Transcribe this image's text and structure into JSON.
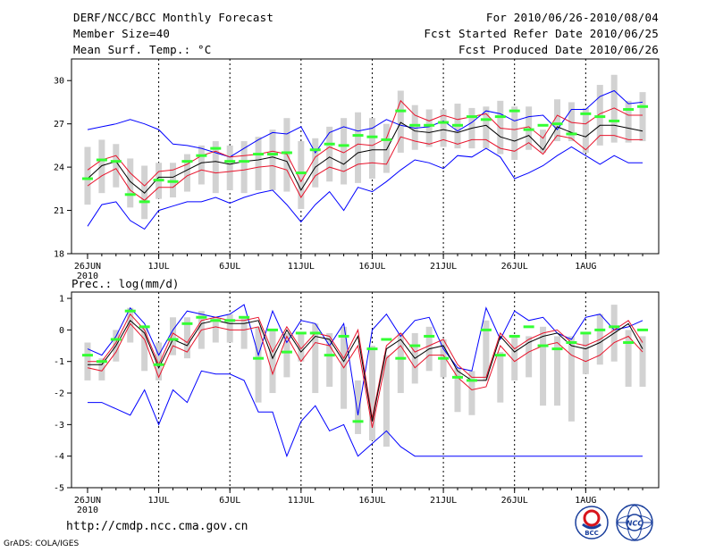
{
  "header": {
    "title": "DERF/NCC/BCC Monthly Forecast",
    "member_size": "Member Size=40",
    "variable": "Mean Surf. Temp.: °C",
    "period": "For 2010/06/26-2010/08/04",
    "started": "Fcst Started Refer Date 2010/06/25",
    "produced": "Fcst Produced Date 2010/06/26"
  },
  "footer": {
    "url": "http://cmdp.ncc.cma.gov.cn",
    "grads": "GrADS: COLA/IGES",
    "logo_bcc_text": "BCC",
    "logo_ncc_text": "NCC"
  },
  "colors": {
    "max_min": "#0000ff",
    "std_band": "#e8142c",
    "mean": "#000000",
    "observed": "#33ff33",
    "range_box": "#d2d2d2"
  },
  "chart_data": [
    {
      "type": "line",
      "title": "Mean Surf. Temp.: °C",
      "x_start": "26JUN 2010",
      "days": 40,
      "ylim": [
        18,
        31.5
      ],
      "yticks": [
        18,
        21,
        24,
        27,
        30
      ],
      "xtick_labels": [
        {
          "day": 0,
          "label": "26JUN"
        },
        {
          "day": 5,
          "label": "1JUL"
        },
        {
          "day": 10,
          "label": "6JUL"
        },
        {
          "day": 15,
          "label": "11JUL"
        },
        {
          "day": 20,
          "label": "16JUL"
        },
        {
          "day": 25,
          "label": "21JUL"
        },
        {
          "day": 30,
          "label": "26JUL"
        },
        {
          "day": 35,
          "label": "1AUG"
        }
      ],
      "year_label": "2010",
      "series": [
        {
          "name": "max",
          "values": [
            26.6,
            26.8,
            27.0,
            27.3,
            27.0,
            26.6,
            25.6,
            25.5,
            25.3,
            25.0,
            24.7,
            25.3,
            25.9,
            26.4,
            26.3,
            26.8,
            25.0,
            26.4,
            26.8,
            26.5,
            26.7,
            27.3,
            26.9,
            26.7,
            26.8,
            27.2,
            26.5,
            27.1,
            27.9,
            27.7,
            27.2,
            27.5,
            27.6,
            26.6,
            28.0,
            28.0,
            28.9,
            29.3,
            28.4,
            28.5
          ]
        },
        {
          "name": "upper",
          "values": [
            23.8,
            24.5,
            24.8,
            23.6,
            22.7,
            23.7,
            23.8,
            24.2,
            24.8,
            25.1,
            24.7,
            24.8,
            24.9,
            25.1,
            24.9,
            23.0,
            24.7,
            25.4,
            25.0,
            25.6,
            25.5,
            26.0,
            28.6,
            27.6,
            27.2,
            27.6,
            27.3,
            27.5,
            27.7,
            26.7,
            26.6,
            26.8,
            26.0,
            27.6,
            27.1,
            27.0,
            27.7,
            28.1,
            27.6,
            27.6
          ]
        },
        {
          "name": "mean",
          "values": [
            23.2,
            24.1,
            24.4,
            23.0,
            22.2,
            23.3,
            23.3,
            23.8,
            24.3,
            24.4,
            24.2,
            24.4,
            24.5,
            24.7,
            24.4,
            22.4,
            24.0,
            24.7,
            24.2,
            25.0,
            25.2,
            25.2,
            27.1,
            26.5,
            26.4,
            26.6,
            26.4,
            26.7,
            26.9,
            26.1,
            25.8,
            26.2,
            25.2,
            26.8,
            26.4,
            26.1,
            26.9,
            26.9,
            26.7,
            26.5
          ]
        },
        {
          "name": "lower",
          "values": [
            22.7,
            23.4,
            23.9,
            22.4,
            21.7,
            22.6,
            22.6,
            23.4,
            23.8,
            23.6,
            23.7,
            23.8,
            24.0,
            24.1,
            23.8,
            21.9,
            23.4,
            24.0,
            23.7,
            24.2,
            24.3,
            24.2,
            26.1,
            25.8,
            25.6,
            25.9,
            25.6,
            25.9,
            25.9,
            25.3,
            25.1,
            25.7,
            24.9,
            26.2,
            26.0,
            25.2,
            26.2,
            26.2,
            25.9,
            25.9
          ]
        },
        {
          "name": "min",
          "values": [
            19.9,
            21.4,
            21.6,
            20.3,
            19.7,
            21.0,
            21.3,
            21.6,
            21.6,
            21.9,
            21.5,
            21.9,
            22.2,
            22.4,
            21.4,
            20.2,
            21.4,
            22.3,
            21.0,
            22.6,
            22.3,
            23.0,
            23.8,
            24.5,
            24.3,
            23.9,
            24.8,
            24.7,
            25.3,
            24.7,
            23.2,
            23.6,
            24.1,
            24.8,
            25.4,
            24.8,
            24.2,
            24.8,
            24.3,
            24.3
          ]
        },
        {
          "name": "observed",
          "values": [
            23.2,
            24.5,
            24.4,
            22.1,
            21.6,
            23.1,
            23.0,
            24.4,
            24.8,
            25.3,
            24.4,
            24.4,
            24.9,
            24.9,
            25.0,
            23.6,
            25.2,
            25.6,
            25.5,
            26.2,
            26.1,
            25.9,
            27.9,
            26.9,
            26.9,
            27.1,
            26.9,
            27.5,
            27.3,
            27.5,
            27.9,
            26.6,
            26.9,
            27.0,
            26.3,
            27.7,
            27.5,
            27.2,
            28.0,
            28.2
          ]
        }
      ],
      "range_boxes": [
        [
          21.4,
          25.4
        ],
        [
          22.2,
          25.9
        ],
        [
          22.6,
          25.6
        ],
        [
          21.2,
          24.6
        ],
        [
          20.4,
          24.1
        ],
        [
          21.8,
          24.3
        ],
        [
          21.9,
          24.3
        ],
        [
          22.3,
          24.9
        ],
        [
          22.8,
          25.5
        ],
        [
          22.2,
          25.8
        ],
        [
          22.4,
          25.5
        ],
        [
          22.2,
          25.8
        ],
        [
          22.4,
          26.1
        ],
        [
          22.4,
          26.6
        ],
        [
          22.3,
          27.4
        ],
        [
          21.1,
          25.8
        ],
        [
          22.6,
          26.0
        ],
        [
          23.0,
          26.8
        ],
        [
          22.8,
          27.4
        ],
        [
          22.9,
          27.8
        ],
        [
          23.2,
          27.4
        ],
        [
          23.6,
          27.0
        ],
        [
          25.0,
          29.3
        ],
        [
          25.2,
          28.3
        ],
        [
          25.4,
          28.0
        ],
        [
          25.4,
          28.0
        ],
        [
          25.3,
          28.4
        ],
        [
          25.3,
          28.1
        ],
        [
          25.3,
          28.2
        ],
        [
          24.9,
          28.6
        ],
        [
          24.5,
          28.2
        ],
        [
          25.2,
          28.2
        ],
        [
          25.0,
          26.6
        ],
        [
          25.8,
          28.7
        ],
        [
          25.8,
          28.5
        ],
        [
          25.0,
          28.1
        ],
        [
          25.5,
          29.7
        ],
        [
          25.7,
          30.4
        ],
        [
          25.7,
          28.6
        ],
        [
          25.8,
          29.2
        ]
      ]
    },
    {
      "type": "line",
      "title": "Prec.: log(mm/d)",
      "x_start": "26JUN 2010",
      "days": 40,
      "ylim": [
        -5,
        1.2
      ],
      "yticks": [
        -5,
        -4,
        -3,
        -2,
        -1,
        0,
        1
      ],
      "xtick_labels": [
        {
          "day": 0,
          "label": "26JUN"
        },
        {
          "day": 5,
          "label": "1JUL"
        },
        {
          "day": 10,
          "label": "6JUL"
        },
        {
          "day": 15,
          "label": "11JUL"
        },
        {
          "day": 20,
          "label": "16JUL"
        },
        {
          "day": 25,
          "label": "21JUL"
        },
        {
          "day": 30,
          "label": "26JUL"
        },
        {
          "day": 35,
          "label": "1AUG"
        }
      ],
      "year_label": "2010",
      "series": [
        {
          "name": "max",
          "values": [
            -0.6,
            -0.8,
            -0.2,
            0.7,
            0.2,
            -0.8,
            0.0,
            0.6,
            0.5,
            0.4,
            0.5,
            0.8,
            -0.8,
            0.6,
            -0.4,
            0.3,
            0.2,
            -0.5,
            0.2,
            -2.7,
            0.0,
            0.5,
            -0.2,
            0.3,
            0.4,
            -0.6,
            -1.2,
            -1.3,
            0.7,
            -0.3,
            0.6,
            0.3,
            0.4,
            -0.1,
            -0.3,
            0.4,
            0.5,
            0.0,
            0.1,
            0.3
          ]
        },
        {
          "name": "upper",
          "values": [
            -1.0,
            -1.0,
            -0.4,
            0.5,
            0.0,
            -1.1,
            -0.1,
            -0.4,
            0.3,
            0.4,
            0.3,
            0.3,
            0.4,
            -0.7,
            0.1,
            -0.6,
            -0.1,
            -0.2,
            -0.9,
            0.0,
            -2.8,
            -0.5,
            -0.1,
            -0.7,
            -0.5,
            -0.3,
            -1.1,
            -1.5,
            -1.5,
            -0.1,
            -0.6,
            -0.3,
            -0.1,
            0.0,
            -0.4,
            -0.5,
            -0.3,
            0.0,
            0.3,
            -0.4
          ]
        },
        {
          "name": "mean",
          "values": [
            -1.1,
            -1.1,
            -0.5,
            0.3,
            -0.1,
            -1.2,
            -0.3,
            -0.5,
            0.2,
            0.3,
            0.2,
            0.2,
            0.3,
            -0.9,
            0.0,
            -0.7,
            -0.2,
            -0.3,
            -1.0,
            -0.2,
            -2.9,
            -0.6,
            -0.3,
            -0.9,
            -0.6,
            -0.5,
            -1.3,
            -1.6,
            -1.6,
            -0.2,
            -0.7,
            -0.4,
            -0.2,
            -0.1,
            -0.5,
            -0.6,
            -0.4,
            -0.1,
            0.2,
            -0.6
          ]
        },
        {
          "name": "lower",
          "values": [
            -1.2,
            -1.3,
            -0.7,
            0.2,
            -0.3,
            -1.5,
            -0.5,
            -0.7,
            0.0,
            0.1,
            0.0,
            0.0,
            0.1,
            -1.4,
            -0.2,
            -1.0,
            -0.4,
            -0.5,
            -1.2,
            -0.5,
            -3.1,
            -0.9,
            -0.5,
            -1.2,
            -0.8,
            -0.8,
            -1.5,
            -1.9,
            -1.8,
            -0.5,
            -1.0,
            -0.7,
            -0.5,
            -0.4,
            -0.8,
            -1.0,
            -0.8,
            -0.4,
            -0.2,
            -0.7
          ]
        },
        {
          "name": "min",
          "values": [
            -2.3,
            -2.3,
            -2.5,
            -2.7,
            -1.9,
            -3.0,
            -1.9,
            -2.3,
            -1.3,
            -1.4,
            -1.4,
            -1.6,
            -2.6,
            -2.6,
            -4.0,
            -2.9,
            -2.4,
            -3.2,
            -3.0,
            -4.0,
            -3.6,
            -3.2,
            -3.7,
            -4.0,
            -4.0,
            -4.0,
            -4.0,
            -4.0,
            -4.0,
            -4.0,
            -4.0,
            -4.0,
            -4.0,
            -4.0,
            -4.0,
            -4.0,
            -4.0,
            -4.0,
            -4.0,
            -4.0
          ]
        },
        {
          "name": "observed",
          "values": [
            -0.8,
            -1.0,
            -0.3,
            0.6,
            0.1,
            -1.1,
            -0.3,
            0.2,
            0.4,
            0.3,
            0.3,
            0.4,
            -0.9,
            0.0,
            -0.7,
            -0.1,
            -0.1,
            -0.8,
            -0.2,
            -2.9,
            -0.6,
            -0.3,
            -0.9,
            -0.5,
            -0.2,
            -0.9,
            -1.5,
            -1.6,
            0.0,
            -0.8,
            -0.2,
            0.1,
            -0.5,
            -0.6,
            -0.4,
            -0.1,
            0.0,
            0.1,
            -0.4,
            0.0
          ]
        }
      ],
      "range_boxes": [
        [
          -1.6,
          -0.4
        ],
        [
          -1.6,
          -0.9
        ],
        [
          -1.0,
          0.0
        ],
        [
          -0.4,
          0.7
        ],
        [
          -1.3,
          0.1
        ],
        [
          -1.6,
          -0.4
        ],
        [
          -0.8,
          0.4
        ],
        [
          -0.9,
          0.4
        ],
        [
          -0.6,
          0.6
        ],
        [
          -0.4,
          0.4
        ],
        [
          -0.4,
          0.5
        ],
        [
          -0.6,
          0.4
        ],
        [
          -2.3,
          0.1
        ],
        [
          -2.0,
          0.0
        ],
        [
          -1.5,
          -0.1
        ],
        [
          -1.0,
          -0.1
        ],
        [
          -2.0,
          0.2
        ],
        [
          -1.8,
          -0.1
        ],
        [
          -2.5,
          0.1
        ],
        [
          -3.3,
          -1.6
        ],
        [
          -3.5,
          -0.5
        ],
        [
          -3.7,
          -0.8
        ],
        [
          -2.0,
          -0.1
        ],
        [
          -1.7,
          -0.1
        ],
        [
          -1.3,
          0.1
        ],
        [
          -1.5,
          -0.3
        ],
        [
          -2.6,
          -1.2
        ],
        [
          -2.7,
          -1.3
        ],
        [
          -1.6,
          0.3
        ],
        [
          -2.3,
          -0.7
        ],
        [
          -1.6,
          -0.2
        ],
        [
          -1.5,
          -0.2
        ],
        [
          -2.4,
          0.1
        ],
        [
          -2.4,
          -0.2
        ],
        [
          -2.9,
          -0.2
        ],
        [
          -1.4,
          -0.1
        ],
        [
          -1.1,
          0.5
        ],
        [
          -1.0,
          0.8
        ],
        [
          -1.8,
          0.0
        ],
        [
          -1.8,
          -0.2
        ]
      ]
    }
  ]
}
